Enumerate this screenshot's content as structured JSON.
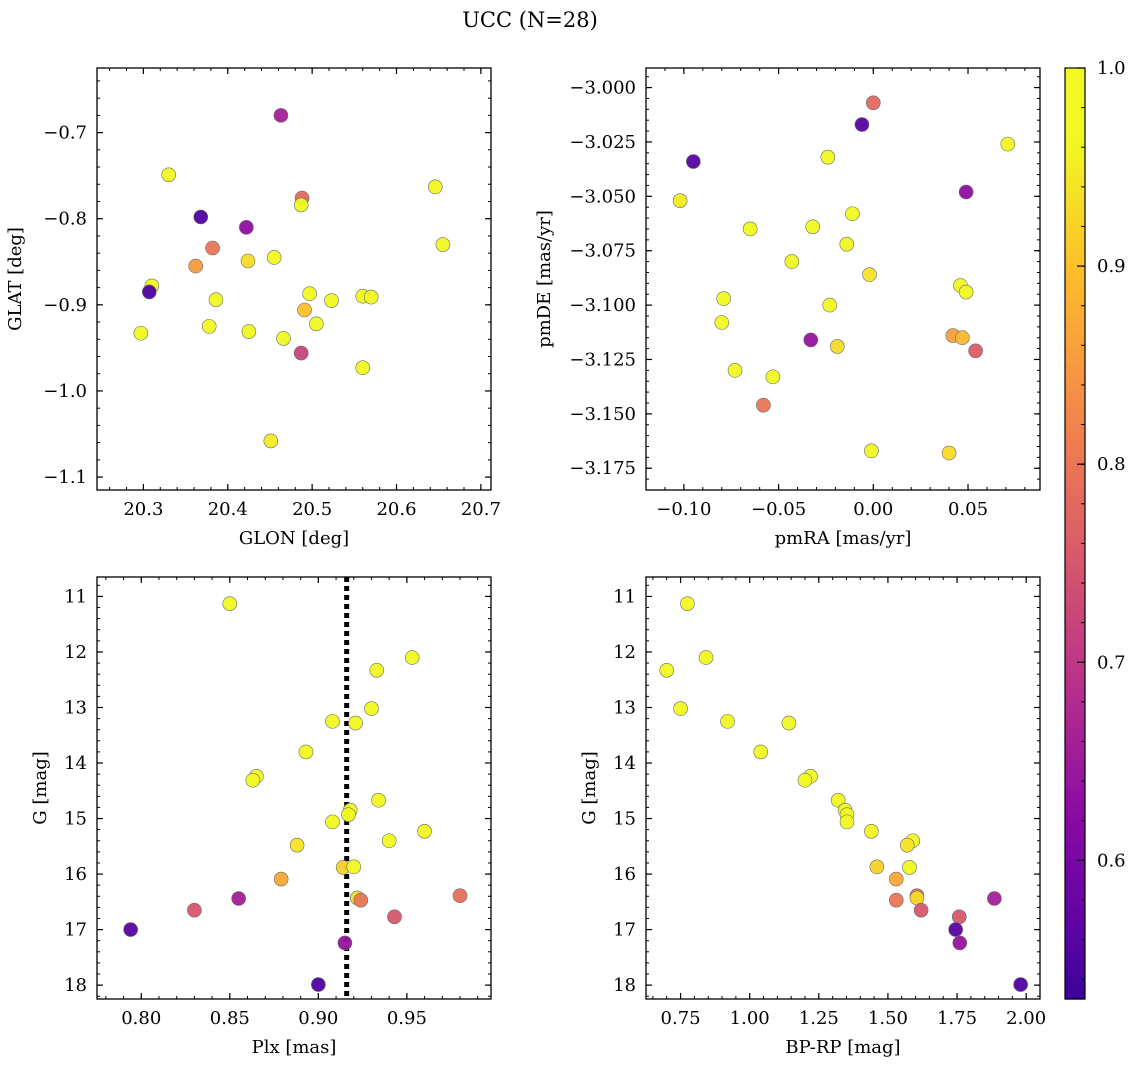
{
  "figure": {
    "title": "UCC (N=28)"
  },
  "colorbar": {
    "range": [
      0.53,
      1.0
    ],
    "ticks": [
      1.0,
      0.9,
      0.8,
      0.7,
      0.6
    ],
    "tick_labels": [
      "1.0",
      "0.9",
      "0.8",
      "0.7",
      "0.6"
    ],
    "colormap": "plasma"
  },
  "chart_data": [
    {
      "id": "glon_glat",
      "type": "scatter",
      "title": "",
      "xlabel": "GLON [deg]",
      "ylabel": "GLAT [deg]",
      "xlim": [
        20.245,
        20.712
      ],
      "ylim": [
        -1.115,
        -0.625
      ],
      "y_inverted": false,
      "xticks": [
        20.3,
        20.4,
        20.5,
        20.6,
        20.7
      ],
      "xtick_labels": [
        "20.3",
        "20.4",
        "20.5",
        "20.6",
        "20.7"
      ],
      "yticks": [
        -0.7,
        -0.8,
        -0.9,
        -1.0,
        -1.1
      ],
      "ytick_labels": [
        "−0.7",
        "−0.8",
        "−0.9",
        "−1.0",
        "−1.1"
      ],
      "points": [
        {
          "x": 20.463,
          "y": -0.68,
          "c": 0.66
        },
        {
          "x": 20.33,
          "y": -0.749,
          "c": 0.97
        },
        {
          "x": 20.646,
          "y": -0.763,
          "c": 0.96
        },
        {
          "x": 20.488,
          "y": -0.776,
          "c": 0.78
        },
        {
          "x": 20.487,
          "y": -0.784,
          "c": 0.97
        },
        {
          "x": 20.368,
          "y": -0.798,
          "c": 0.55
        },
        {
          "x": 20.422,
          "y": -0.81,
          "c": 0.63
        },
        {
          "x": 20.655,
          "y": -0.83,
          "c": 0.97
        },
        {
          "x": 20.382,
          "y": -0.834,
          "c": 0.8
        },
        {
          "x": 20.455,
          "y": -0.845,
          "c": 0.98
        },
        {
          "x": 20.424,
          "y": -0.849,
          "c": 0.93
        },
        {
          "x": 20.362,
          "y": -0.855,
          "c": 0.85
        },
        {
          "x": 20.31,
          "y": -0.878,
          "c": 0.97
        },
        {
          "x": 20.307,
          "y": -0.885,
          "c": 0.55
        },
        {
          "x": 20.497,
          "y": -0.887,
          "c": 0.98
        },
        {
          "x": 20.56,
          "y": -0.89,
          "c": 0.99
        },
        {
          "x": 20.57,
          "y": -0.891,
          "c": 0.98
        },
        {
          "x": 20.386,
          "y": -0.894,
          "c": 0.98
        },
        {
          "x": 20.523,
          "y": -0.895,
          "c": 0.98
        },
        {
          "x": 20.491,
          "y": -0.906,
          "c": 0.9
        },
        {
          "x": 20.505,
          "y": -0.922,
          "c": 0.97
        },
        {
          "x": 20.378,
          "y": -0.925,
          "c": 0.98
        },
        {
          "x": 20.425,
          "y": -0.931,
          "c": 0.98
        },
        {
          "x": 20.297,
          "y": -0.933,
          "c": 0.97
        },
        {
          "x": 20.466,
          "y": -0.939,
          "c": 0.97
        },
        {
          "x": 20.487,
          "y": -0.956,
          "c": 0.72
        },
        {
          "x": 20.56,
          "y": -0.973,
          "c": 0.98
        },
        {
          "x": 20.451,
          "y": -1.058,
          "c": 0.95
        }
      ]
    },
    {
      "id": "pm",
      "type": "scatter",
      "title": "",
      "xlabel": "pmRA [mas/yr]",
      "ylabel": "pmDE [mas/yr]",
      "xlim": [
        -0.12,
        0.088
      ],
      "ylim": [
        -3.185,
        -2.991
      ],
      "y_inverted": false,
      "xticks": [
        -0.1,
        -0.05,
        0.0,
        0.05
      ],
      "xtick_labels": [
        "−0.10",
        "−0.05",
        "0.00",
        "0.05"
      ],
      "yticks": [
        -3.0,
        -3.025,
        -3.05,
        -3.075,
        -3.1,
        -3.125,
        -3.15,
        -3.175
      ],
      "ytick_labels": [
        "−3.000",
        "−3.025",
        "−3.050",
        "−3.075",
        "−3.100",
        "−3.125",
        "−3.150",
        "−3.175"
      ],
      "points": [
        {
          "x": 0.0,
          "y": -3.007,
          "c": 0.78
        },
        {
          "x": -0.006,
          "y": -3.017,
          "c": 0.56
        },
        {
          "x": 0.071,
          "y": -3.026,
          "c": 0.97
        },
        {
          "x": -0.024,
          "y": -3.032,
          "c": 0.97
        },
        {
          "x": -0.095,
          "y": -3.034,
          "c": 0.56
        },
        {
          "x": 0.049,
          "y": -3.048,
          "c": 0.63
        },
        {
          "x": -0.102,
          "y": -3.052,
          "c": 0.95
        },
        {
          "x": -0.011,
          "y": -3.058,
          "c": 0.97
        },
        {
          "x": -0.032,
          "y": -3.064,
          "c": 0.97
        },
        {
          "x": -0.065,
          "y": -3.065,
          "c": 0.98
        },
        {
          "x": -0.014,
          "y": -3.072,
          "c": 0.97
        },
        {
          "x": -0.043,
          "y": -3.08,
          "c": 0.97
        },
        {
          "x": -0.002,
          "y": -3.086,
          "c": 0.94
        },
        {
          "x": 0.046,
          "y": -3.091,
          "c": 0.97
        },
        {
          "x": 0.049,
          "y": -3.094,
          "c": 0.98
        },
        {
          "x": -0.079,
          "y": -3.097,
          "c": 0.98
        },
        {
          "x": -0.023,
          "y": -3.1,
          "c": 0.97
        },
        {
          "x": -0.08,
          "y": -3.108,
          "c": 0.97
        },
        {
          "x": 0.042,
          "y": -3.114,
          "c": 0.86
        },
        {
          "x": 0.047,
          "y": -3.115,
          "c": 0.89
        },
        {
          "x": -0.033,
          "y": -3.116,
          "c": 0.64
        },
        {
          "x": -0.019,
          "y": -3.119,
          "c": 0.93
        },
        {
          "x": 0.054,
          "y": -3.121,
          "c": 0.76
        },
        {
          "x": -0.073,
          "y": -3.13,
          "c": 0.98
        },
        {
          "x": -0.053,
          "y": -3.133,
          "c": 0.97
        },
        {
          "x": -0.058,
          "y": -3.146,
          "c": 0.8
        },
        {
          "x": -0.001,
          "y": -3.167,
          "c": 0.97
        },
        {
          "x": 0.04,
          "y": -3.168,
          "c": 0.93
        }
      ]
    },
    {
      "id": "plx_g",
      "type": "scatter",
      "title": "",
      "xlabel": "Plx [mas]",
      "ylabel": "G [mag]",
      "xlim": [
        0.775,
        0.9975
      ],
      "ylim": [
        18.25,
        10.65
      ],
      "y_inverted": true,
      "xticks": [
        0.8,
        0.85,
        0.9,
        0.95
      ],
      "xtick_labels": [
        "0.80",
        "0.85",
        "0.90",
        "0.95"
      ],
      "yticks": [
        11,
        12,
        13,
        14,
        15,
        16,
        17,
        18
      ],
      "ytick_labels": [
        "11",
        "12",
        "13",
        "14",
        "15",
        "16",
        "17",
        "18"
      ],
      "vline": {
        "x": 0.916,
        "style": "dotted"
      },
      "points": [
        {
          "x": 0.85,
          "y": 11.13,
          "c": 0.97
        },
        {
          "x": 0.953,
          "y": 12.1,
          "c": 0.98
        },
        {
          "x": 0.933,
          "y": 12.33,
          "c": 0.98
        },
        {
          "x": 0.93,
          "y": 13.02,
          "c": 0.98
        },
        {
          "x": 0.908,
          "y": 13.25,
          "c": 0.97
        },
        {
          "x": 0.921,
          "y": 13.28,
          "c": 0.98
        },
        {
          "x": 0.893,
          "y": 13.8,
          "c": 0.97
        },
        {
          "x": 0.865,
          "y": 14.24,
          "c": 0.97
        },
        {
          "x": 0.863,
          "y": 14.31,
          "c": 0.97
        },
        {
          "x": 0.934,
          "y": 14.67,
          "c": 0.98
        },
        {
          "x": 0.918,
          "y": 14.85,
          "c": 0.98
        },
        {
          "x": 0.917,
          "y": 14.93,
          "c": 0.98
        },
        {
          "x": 0.908,
          "y": 15.06,
          "c": 0.97
        },
        {
          "x": 0.96,
          "y": 15.23,
          "c": 0.96
        },
        {
          "x": 0.94,
          "y": 15.4,
          "c": 0.98
        },
        {
          "x": 0.888,
          "y": 15.48,
          "c": 0.94
        },
        {
          "x": 0.914,
          "y": 15.88,
          "c": 0.92
        },
        {
          "x": 0.92,
          "y": 15.87,
          "c": 0.98
        },
        {
          "x": 0.879,
          "y": 16.09,
          "c": 0.87
        },
        {
          "x": 0.922,
          "y": 16.43,
          "c": 0.93
        },
        {
          "x": 0.924,
          "y": 16.47,
          "c": 0.8
        },
        {
          "x": 0.98,
          "y": 16.39,
          "c": 0.79
        },
        {
          "x": 0.855,
          "y": 16.44,
          "c": 0.66
        },
        {
          "x": 0.83,
          "y": 16.65,
          "c": 0.75
        },
        {
          "x": 0.943,
          "y": 16.77,
          "c": 0.75
        },
        {
          "x": 0.794,
          "y": 17.0,
          "c": 0.56
        },
        {
          "x": 0.915,
          "y": 17.24,
          "c": 0.64
        },
        {
          "x": 0.9,
          "y": 17.99,
          "c": 0.55
        }
      ]
    },
    {
      "id": "cmd",
      "type": "scatter",
      "title": "",
      "xlabel": "BP-RP [mag]",
      "ylabel": "G [mag]",
      "xlim": [
        0.625,
        2.05
      ],
      "ylim": [
        18.25,
        10.65
      ],
      "y_inverted": true,
      "xticks": [
        0.75,
        1.0,
        1.25,
        1.5,
        1.75,
        2.0
      ],
      "xtick_labels": [
        "0.75",
        "1.00",
        "1.25",
        "1.50",
        "1.75",
        "2.00"
      ],
      "yticks": [
        11,
        12,
        13,
        14,
        15,
        16,
        17,
        18
      ],
      "ytick_labels": [
        "11",
        "12",
        "13",
        "14",
        "15",
        "16",
        "17",
        "18"
      ],
      "points": [
        {
          "x": 0.775,
          "y": 11.13,
          "c": 0.97
        },
        {
          "x": 0.842,
          "y": 12.1,
          "c": 0.98
        },
        {
          "x": 0.7,
          "y": 12.33,
          "c": 0.98
        },
        {
          "x": 0.75,
          "y": 13.02,
          "c": 0.98
        },
        {
          "x": 0.92,
          "y": 13.25,
          "c": 0.97
        },
        {
          "x": 1.142,
          "y": 13.28,
          "c": 0.98
        },
        {
          "x": 1.04,
          "y": 13.8,
          "c": 0.97
        },
        {
          "x": 1.22,
          "y": 14.24,
          "c": 0.97
        },
        {
          "x": 1.2,
          "y": 14.31,
          "c": 0.97
        },
        {
          "x": 1.32,
          "y": 14.67,
          "c": 0.98
        },
        {
          "x": 1.345,
          "y": 14.85,
          "c": 0.98
        },
        {
          "x": 1.352,
          "y": 14.93,
          "c": 0.98
        },
        {
          "x": 1.352,
          "y": 15.06,
          "c": 0.97
        },
        {
          "x": 1.44,
          "y": 15.23,
          "c": 0.96
        },
        {
          "x": 1.59,
          "y": 15.4,
          "c": 0.98
        },
        {
          "x": 1.57,
          "y": 15.48,
          "c": 0.94
        },
        {
          "x": 1.46,
          "y": 15.87,
          "c": 0.92
        },
        {
          "x": 1.578,
          "y": 15.88,
          "c": 0.98
        },
        {
          "x": 1.53,
          "y": 16.09,
          "c": 0.87
        },
        {
          "x": 1.605,
          "y": 16.39,
          "c": 0.79
        },
        {
          "x": 1.605,
          "y": 16.43,
          "c": 0.93
        },
        {
          "x": 1.885,
          "y": 16.44,
          "c": 0.66
        },
        {
          "x": 1.53,
          "y": 16.47,
          "c": 0.8
        },
        {
          "x": 1.62,
          "y": 16.65,
          "c": 0.75
        },
        {
          "x": 1.758,
          "y": 16.77,
          "c": 0.75
        },
        {
          "x": 1.745,
          "y": 17.0,
          "c": 0.56
        },
        {
          "x": 1.76,
          "y": 17.24,
          "c": 0.64
        },
        {
          "x": 1.98,
          "y": 17.99,
          "c": 0.55
        }
      ]
    }
  ]
}
